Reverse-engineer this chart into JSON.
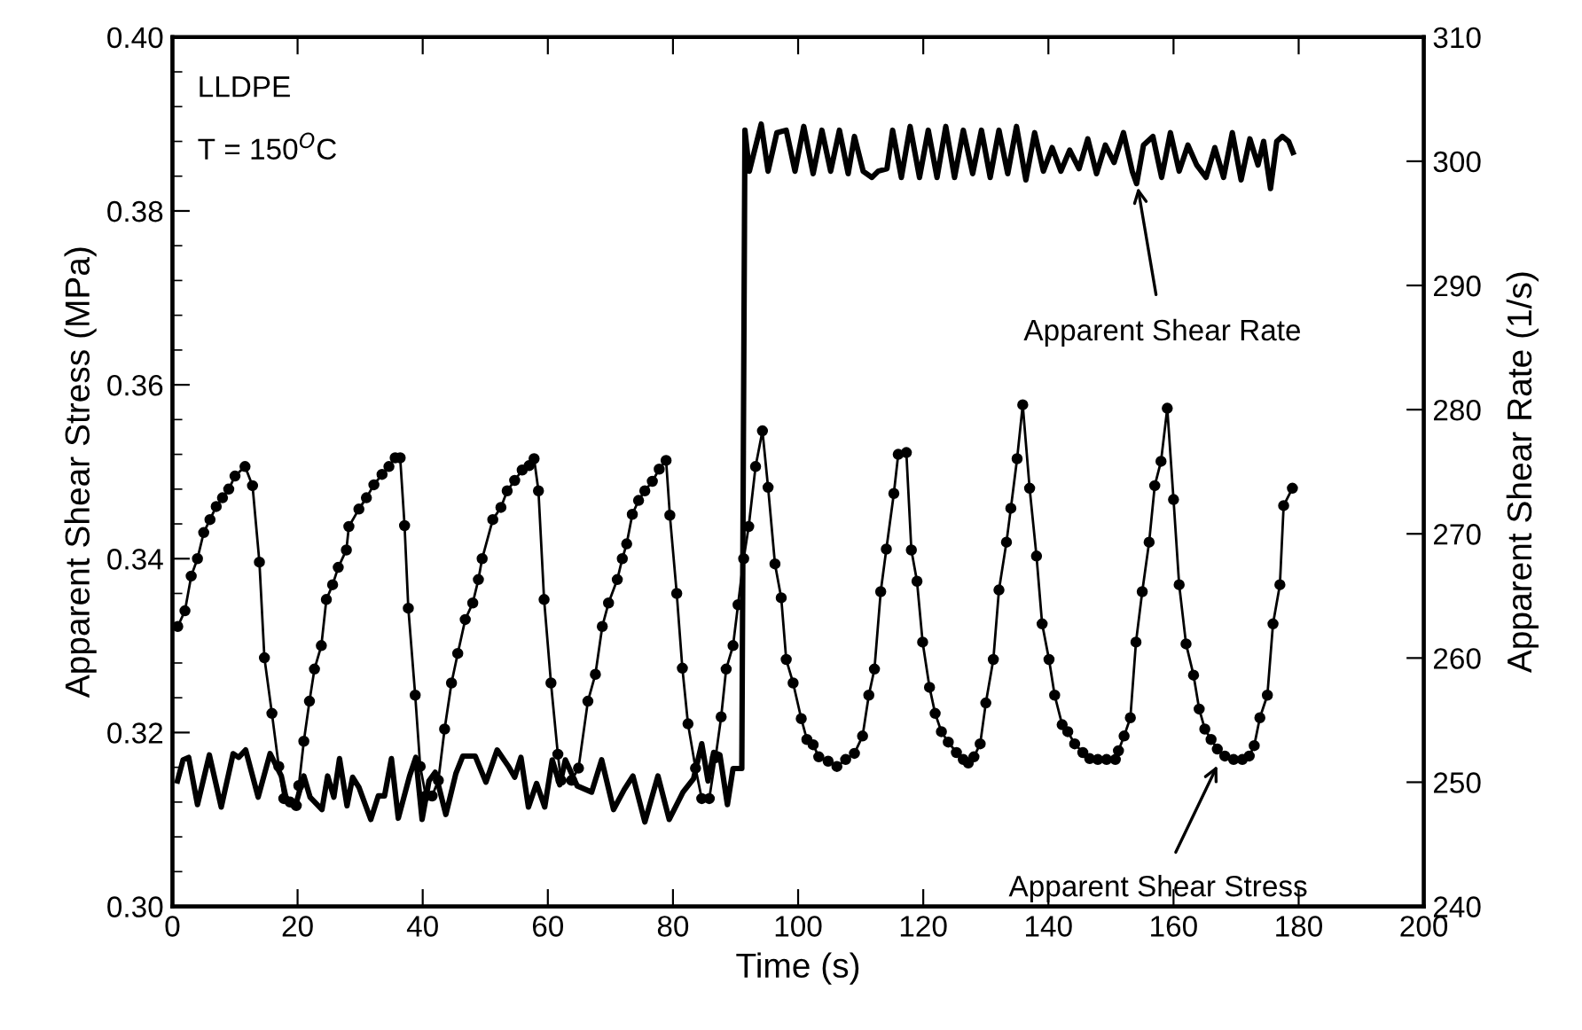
{
  "chart_data": {
    "type": "line",
    "xlabel": "Time (s)",
    "ylabel": "Apparent Shear Stress (MPa)",
    "y2label": "Apparent Shear Rate (1/s)",
    "annotations": [
      "LLDPE",
      "T = 150$^{O}$C",
      {
        "text": "Apparent Shear Rate",
        "x": 154.3,
        "y": 0.3827
      },
      {
        "text": "Apparent Shear Stress",
        "x": 167,
        "y": 0.3162
      }
    ],
    "xlim": [
      0,
      200
    ],
    "xticks": [
      0,
      20,
      40,
      60,
      80,
      100,
      120,
      140,
      160,
      180,
      200
    ],
    "ylim": [
      0.3,
      0.4
    ],
    "yticks": [
      {
        "value": 0.3,
        "label": "0.30"
      },
      {
        "value": 0.32,
        "label": "0.32"
      },
      {
        "value": 0.34,
        "label": "0.34"
      },
      {
        "value": 0.36,
        "label": "0.36"
      },
      {
        "value": 0.38,
        "label": "0.38"
      },
      {
        "value": 0.4,
        "label": "0.40"
      }
    ],
    "y2lim": [
      240,
      310
    ],
    "y2ticks": [
      240,
      250,
      260,
      270,
      280,
      290,
      300,
      310
    ],
    "grid": false,
    "series": [
      {
        "color": "#000000",
        "marker": "circle",
        "x": [
          0.85,
          2,
          3,
          4,
          5,
          6,
          7,
          8,
          9,
          10,
          11.6,
          12.8,
          13.9,
          14.7,
          15.9,
          17,
          17.8,
          18.8,
          19.8,
          20.2,
          21,
          21.9,
          22.7,
          23.8,
          24.6,
          25.6,
          26.5,
          27.8,
          28.2,
          29.8,
          31,
          32.2,
          33.5,
          34.6,
          35.6,
          36.4,
          37.1,
          37.7,
          38.8,
          39.6,
          40.5,
          41.5,
          42.5,
          43.5,
          44.6,
          45.6,
          46.8,
          48,
          48.9,
          49.5,
          51.2,
          52.5,
          53.5,
          54.7,
          55.9,
          57,
          57.8,
          58.5,
          59.4,
          60.5,
          61.6,
          62.1,
          63.8,
          64.9,
          66.4,
          67.6,
          68.7,
          69.7,
          71.1,
          71.9,
          72.6,
          73.5,
          74.5,
          75.5,
          76.7,
          77.8,
          78.9,
          79.5,
          80.6,
          81.5,
          82.4,
          83.6,
          84.6,
          85.8,
          86.8,
          87.7,
          88.5,
          89.6,
          90.4,
          91.3,
          92.1,
          93.2,
          94.3,
          95.2,
          96.3,
          97.3,
          98.1,
          99.2,
          100.5,
          101.4,
          102.4,
          103.3,
          104.8,
          106.2,
          107.6,
          109,
          110.3,
          111.3,
          112.2,
          113.2,
          114.1,
          115.3,
          116,
          117.3,
          118.1,
          119,
          119.9,
          121,
          121.9,
          122.9,
          124,
          125.3,
          126.4,
          127.2,
          128.1,
          129.1,
          130,
          131.2,
          132.1,
          133.3,
          134,
          135,
          135.9,
          137,
          138.1,
          139,
          140.1,
          141,
          142.2,
          143.1,
          144.2,
          145.5,
          146.6,
          147.9,
          149.3,
          150.7,
          151.2,
          152.1,
          153.1,
          154,
          155,
          156.1,
          157,
          158,
          159,
          160,
          160.9,
          162,
          163.2,
          164.1,
          165,
          166,
          167,
          168.2,
          169.6,
          171,
          172.1,
          172.9,
          173.8,
          175,
          175.9,
          177,
          177.6,
          179
        ],
        "values": [
          0.3322,
          0.334,
          0.338,
          0.34,
          0.343,
          0.3445,
          0.346,
          0.347,
          0.348,
          0.3495,
          0.3506,
          0.3484,
          0.3396,
          0.3286,
          0.3222,
          0.3161,
          0.3124,
          0.312,
          0.3116,
          0.3139,
          0.319,
          0.3236,
          0.3273,
          0.33,
          0.3353,
          0.337,
          0.339,
          0.341,
          0.3437,
          0.3457,
          0.347,
          0.3485,
          0.3497,
          0.3506,
          0.3516,
          0.3516,
          0.3438,
          0.3343,
          0.3243,
          0.3161,
          0.3127,
          0.3127,
          0.3145,
          0.3204,
          0.3257,
          0.3291,
          0.333,
          0.3349,
          0.3376,
          0.34,
          0.3445,
          0.3459,
          0.3478,
          0.349,
          0.3502,
          0.3507,
          0.3515,
          0.3478,
          0.3353,
          0.3257,
          0.3175,
          0.3145,
          0.3145,
          0.3159,
          0.3236,
          0.3267,
          0.3322,
          0.3349,
          0.3376,
          0.34,
          0.3417,
          0.3451,
          0.3467,
          0.3478,
          0.3489,
          0.3503,
          0.3513,
          0.345,
          0.336,
          0.3274,
          0.321,
          0.3159,
          0.3124,
          0.3124,
          0.3171,
          0.3218,
          0.3273,
          0.33,
          0.3347,
          0.34,
          0.3437,
          0.3506,
          0.3547,
          0.3482,
          0.3394,
          0.3355,
          0.3284,
          0.3257,
          0.3216,
          0.3192,
          0.3186,
          0.3172,
          0.3167,
          0.3161,
          0.3169,
          0.3176,
          0.3196,
          0.3243,
          0.3273,
          0.3362,
          0.3411,
          0.3475,
          0.352,
          0.3522,
          0.341,
          0.3374,
          0.3304,
          0.3252,
          0.3222,
          0.3201,
          0.3189,
          0.3177,
          0.3169,
          0.3165,
          0.3172,
          0.3187,
          0.3234,
          0.3284,
          0.3364,
          0.3419,
          0.3458,
          0.3515,
          0.3577,
          0.3481,
          0.3403,
          0.3325,
          0.3284,
          0.3243,
          0.3209,
          0.3201,
          0.3187,
          0.3177,
          0.317,
          0.3169,
          0.3169,
          0.3169,
          0.3179,
          0.3196,
          0.3217,
          0.3304,
          0.3362,
          0.3419,
          0.3484,
          0.3512,
          0.3573,
          0.3468,
          0.337,
          0.3302,
          0.3266,
          0.3227,
          0.3204,
          0.3192,
          0.3181,
          0.3173,
          0.3169,
          0.3169,
          0.3173,
          0.3185,
          0.3217,
          0.3243,
          0.3325,
          0.337,
          0.3461,
          0.3481
        ]
      },
      {
        "color": "#000000",
        "marker": "none",
        "axis": "y2",
        "x": [
          0.8,
          1.7,
          2.6,
          4.0,
          5.9,
          7.8,
          9.7,
          10.6,
          11.7,
          13.7,
          15.6,
          17.4,
          18.3,
          19.6,
          21,
          22,
          23.9,
          24.8,
          25.8,
          26.7,
          27.9,
          28.8,
          29.8,
          31.7,
          32.9,
          33.9,
          35,
          36.1,
          37.9,
          38.9,
          39.9,
          41,
          42,
          43.7,
          45.3,
          46.4,
          48.4,
          50.1,
          51.9,
          53.8,
          54.7,
          55.7,
          56.9,
          58.2,
          59.5,
          60.7,
          61.9,
          62.8,
          64.7,
          67,
          68.6,
          70.5,
          72.2,
          73.6,
          75.5,
          77.6,
          79.4,
          81.6,
          83.3,
          84.6,
          85.6,
          86.5,
          87.5,
          88.7,
          89.6,
          90.4,
          91.0,
          91.5,
          92.2,
          94.1,
          95.2,
          96.6,
          98.1,
          99.5,
          100.9,
          102.4,
          103.8,
          105.2,
          106.6,
          108.0,
          109.0,
          110.4,
          111.8,
          112.8,
          114.2,
          115.1,
          116.5,
          117.9,
          119.4,
          120.8,
          122.2,
          123.6,
          125.0,
          126.4,
          127.9,
          129.3,
          130.7,
          132.1,
          133.5,
          134.9,
          136.4,
          137.8,
          139.2,
          140.6,
          142.0,
          143.4,
          144.9,
          146.3,
          147.7,
          149.1,
          150.5,
          152.0,
          153.4,
          154.1,
          155.2,
          156.7,
          158.1,
          159.5,
          160.9,
          162.3,
          163.7,
          165.2,
          166.6,
          168.0,
          169.4,
          170.8,
          172.2,
          173.5,
          174.4,
          175.5,
          176.5,
          177.4,
          178.4,
          179.1
        ],
        "values": [
          250.1,
          251.8,
          252.0,
          248.2,
          252.2,
          248.0,
          252.3,
          252.0,
          252.6,
          248.8,
          252.3,
          250.5,
          248.4,
          248.0,
          250.5,
          248.8,
          247.8,
          250.5,
          248.8,
          251.9,
          248.1,
          250.4,
          249.6,
          247.0,
          248.9,
          248.9,
          251.9,
          247.1,
          250.5,
          252.0,
          247.0,
          250.1,
          250.8,
          247.4,
          250.7,
          252.1,
          252.1,
          250.0,
          252.6,
          251.2,
          250.4,
          252.0,
          248.0,
          249.9,
          248.0,
          251.8,
          249.8,
          251.8,
          249.7,
          249.2,
          251.8,
          247.8,
          249.4,
          250.5,
          246.8,
          250.5,
          247.0,
          249.2,
          250.3,
          253.1,
          250.1,
          252.4,
          252.2,
          248.2,
          251.1,
          251.1,
          251.1,
          302.5,
          299.2,
          303.0,
          299.2,
          302.3,
          302.5,
          299.2,
          302.8,
          299.0,
          302.5,
          299.2,
          302.5,
          299.0,
          302.0,
          299.2,
          298.7,
          299.2,
          299.4,
          302.5,
          298.7,
          302.8,
          298.7,
          302.5,
          298.7,
          302.8,
          298.7,
          302.5,
          299.0,
          302.5,
          298.7,
          302.5,
          299.0,
          302.8,
          298.5,
          302.3,
          299.2,
          301.1,
          299.2,
          300.9,
          299.4,
          301.8,
          299.0,
          301.3,
          299.9,
          302.3,
          299.2,
          298.2,
          301.3,
          302.0,
          298.7,
          302.3,
          299.2,
          301.3,
          299.7,
          298.7,
          301.1,
          298.7,
          302.3,
          298.5,
          301.8,
          299.7,
          301.6,
          297.8,
          301.6,
          302.0,
          301.6,
          300.7
        ]
      }
    ]
  }
}
